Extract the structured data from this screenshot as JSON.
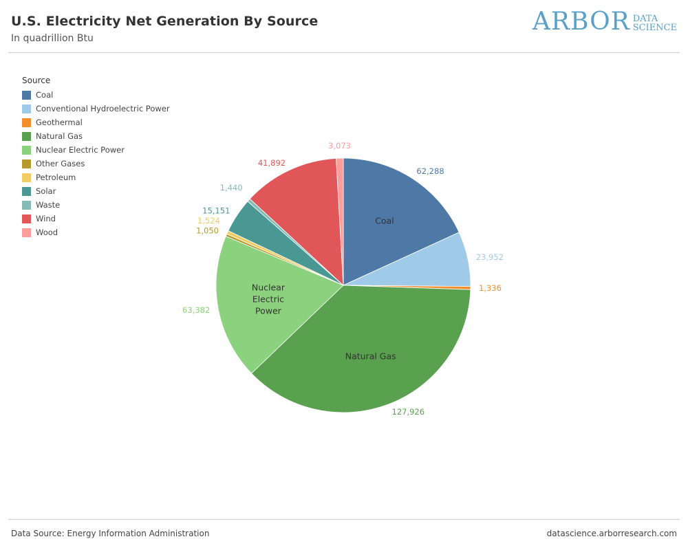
{
  "header": {
    "title": "U.S. Electricity Net Generation By Source",
    "subtitle": "In quadrillion Btu",
    "logo_main": "ARBOR",
    "logo_sub_1": "DATA",
    "logo_sub_2": "SCIENCE"
  },
  "footer": {
    "source": "Data Source: Energy Information Administration",
    "url": "datascience.arborresearch.com"
  },
  "chart_data": {
    "type": "pie",
    "legend_title": "Source",
    "legend_position": "top-left",
    "slices": [
      {
        "name": "Coal",
        "value": 62288,
        "label": "62,288",
        "color": "#4e79a7",
        "inner": [
          "Coal"
        ]
      },
      {
        "name": "Conventional Hydroelectric Power",
        "value": 23952,
        "label": "23,952",
        "color": "#a0cbe8"
      },
      {
        "name": "Geothermal",
        "value": 1336,
        "label": "1,336",
        "color": "#f28e2b"
      },
      {
        "name": "Natural Gas",
        "value": 127926,
        "label": "127,926",
        "color": "#59a14f",
        "inner": [
          "Natural Gas"
        ]
      },
      {
        "name": "Nuclear Electric Power",
        "value": 63382,
        "label": "63,382",
        "color": "#8cd17d",
        "inner": [
          "Nuclear",
          "Electric",
          "Power"
        ]
      },
      {
        "name": "Other Gases",
        "value": 1050,
        "label": "1,050",
        "color": "#b6992d"
      },
      {
        "name": "Petroleum",
        "value": 1524,
        "label": "1,524",
        "color": "#f1ce63"
      },
      {
        "name": "Solar",
        "value": 15151,
        "label": "15,151",
        "color": "#499894"
      },
      {
        "name": "Waste",
        "value": 1440,
        "label": "1,440",
        "color": "#86bcb6"
      },
      {
        "name": "Wind",
        "value": 41892,
        "label": "41,892",
        "color": "#e15759"
      },
      {
        "name": "Wood",
        "value": 3073,
        "label": "3,073",
        "color": "#ff9d9a"
      }
    ]
  }
}
